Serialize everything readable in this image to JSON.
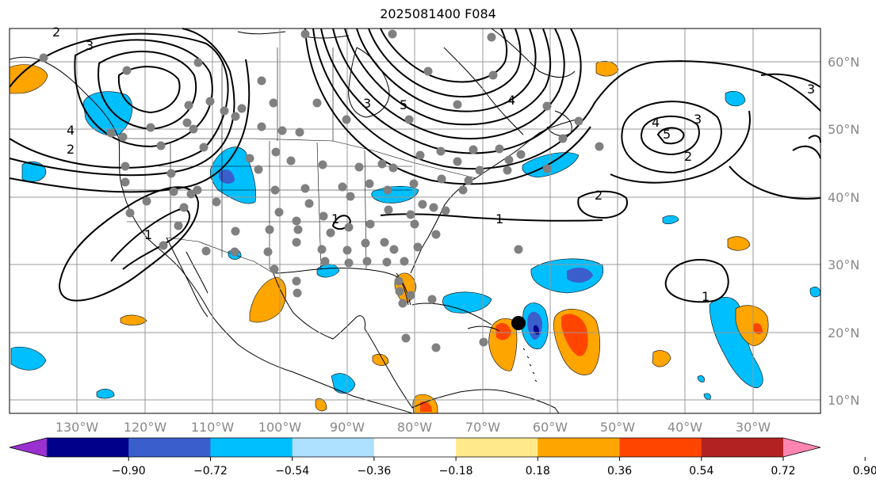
{
  "title": "2025081400 F084",
  "map": {
    "lat_labels": [
      "60°N",
      "50°N",
      "40°N",
      "30°N",
      "20°N",
      "10°N"
    ],
    "lon_labels": [
      "130°W",
      "120°W",
      "110°W",
      "100°W",
      "90°W",
      "80°W",
      "70°W",
      "60°W",
      "50°W",
      "40°W",
      "30°W"
    ],
    "contour_labels": [
      "1",
      "1",
      "2",
      "2",
      "2",
      "3",
      "3",
      "4",
      "4",
      "5",
      "5",
      "3",
      "2",
      "1",
      "1",
      "4",
      "3"
    ]
  },
  "colorbar": {
    "ticks": [
      "−0.90",
      "−0.72",
      "−0.54",
      "−0.36",
      "−0.18",
      "0.18",
      "0.36",
      "0.54",
      "0.72",
      "0.90"
    ],
    "colors": [
      "#9b30d0",
      "#00008b",
      "#3a5fcd",
      "#00bfff",
      "#aee0ff",
      "#ffffff",
      "#ffe98a",
      "#ffa500",
      "#ff4500",
      "#b22222",
      "#ff85b0"
    ]
  }
}
